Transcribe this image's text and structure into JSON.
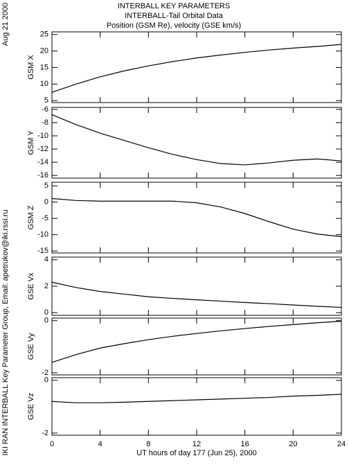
{
  "header": {
    "date": "Aug 21 2000",
    "credit": "IKI RAN INTERBALL Key Parameter Group, Email: apetrukov@iki.rssi.ru",
    "title": "INTERBALL KEY PARAMETERS",
    "subtitle": "INTERBALL-Tail Orbital Data",
    "subtitle2": "Position (GSM Re), velocity (GSE km/s)"
  },
  "chart_data": [
    {
      "type": "line",
      "ylabel": "GSM X",
      "x": [
        0,
        2,
        4,
        6,
        8,
        10,
        12,
        14,
        16,
        18,
        20,
        22,
        24
      ],
      "values": [
        7.5,
        10,
        12.2,
        14,
        15.5,
        16.8,
        17.9,
        18.8,
        19.6,
        20.3,
        20.9,
        21.4,
        22
      ],
      "xlim": [
        0,
        24
      ],
      "xticks": [
        0,
        4,
        8,
        12,
        16,
        20,
        24
      ],
      "show_xtick_labels": false,
      "ylim": [
        4.4,
        25.8
      ],
      "yticks": [
        5,
        10,
        15,
        20,
        25
      ],
      "color": "#000000"
    },
    {
      "type": "line",
      "ylabel": "GSM Y",
      "x": [
        0,
        2,
        4,
        6,
        8,
        10,
        12,
        14,
        16,
        18,
        20,
        22,
        24
      ],
      "values": [
        -6.8,
        -8.3,
        -9.6,
        -10.7,
        -11.8,
        -12.8,
        -13.6,
        -14.2,
        -14.4,
        -14.1,
        -13.7,
        -13.5,
        -13.8
      ],
      "xlim": [
        0,
        24
      ],
      "xticks": [
        0,
        4,
        8,
        12,
        16,
        20,
        24
      ],
      "show_xtick_labels": false,
      "ylim": [
        -16.4,
        -5.7
      ],
      "yticks": [
        -6,
        -8,
        -10,
        -12,
        -14,
        -16
      ],
      "color": "#000000"
    },
    {
      "type": "line",
      "ylabel": "GSM Z",
      "x": [
        0,
        2,
        4,
        6,
        8,
        10,
        12,
        14,
        16,
        18,
        20,
        22,
        24
      ],
      "values": [
        1.1,
        0.5,
        0.3,
        0.3,
        0.3,
        0.3,
        -0.2,
        -1.5,
        -3.5,
        -6.0,
        -8.3,
        -9.8,
        -10.6
      ],
      "xlim": [
        0,
        24
      ],
      "xticks": [
        0,
        4,
        8,
        12,
        16,
        20,
        24
      ],
      "show_xtick_labels": false,
      "ylim": [
        -15.6,
        6.1
      ],
      "yticks": [
        5,
        0,
        -5,
        -10,
        -15
      ],
      "color": "#000000"
    },
    {
      "type": "line",
      "ylabel": "GSE Vx",
      "x": [
        0,
        2,
        4,
        6,
        8,
        10,
        12,
        14,
        16,
        18,
        20,
        22,
        24
      ],
      "values": [
        2.3,
        1.9,
        1.6,
        1.4,
        1.2,
        1.08,
        0.97,
        0.87,
        0.77,
        0.68,
        0.58,
        0.48,
        0.4
      ],
      "xlim": [
        0,
        24
      ],
      "xticks": [
        0,
        4,
        8,
        12,
        16,
        20,
        24
      ],
      "show_xtick_labels": false,
      "ylim": [
        -0.2,
        4.2
      ],
      "yticks": [
        0,
        2,
        4
      ],
      "color": "#000000"
    },
    {
      "type": "line",
      "ylabel": "GSE Vy",
      "x": [
        0,
        2,
        4,
        6,
        8,
        10,
        12,
        14,
        16,
        18,
        20,
        22,
        24
      ],
      "values": [
        -1.6,
        -1.3,
        -1.05,
        -0.88,
        -0.73,
        -0.6,
        -0.49,
        -0.39,
        -0.3,
        -0.22,
        -0.15,
        -0.08,
        -0.02
      ],
      "xlim": [
        0,
        24
      ],
      "xticks": [
        0,
        4,
        8,
        12,
        16,
        20,
        24
      ],
      "show_xtick_labels": false,
      "ylim": [
        -2.08,
        0.1
      ],
      "yticks": [
        0,
        -2
      ],
      "color": "#000000"
    },
    {
      "type": "line",
      "ylabel": "GSE Vz",
      "xlabel": "UT hours of day 177 (Jun 25), 2000",
      "x": [
        0,
        2,
        4,
        6,
        8,
        10,
        12,
        14,
        16,
        18,
        20,
        22,
        24
      ],
      "values": [
        -0.8,
        -0.85,
        -0.85,
        -0.83,
        -0.8,
        -0.77,
        -0.74,
        -0.71,
        -0.68,
        -0.65,
        -0.6,
        -0.57,
        -0.53
      ],
      "xlim": [
        0,
        24
      ],
      "xticks": [
        0,
        4,
        8,
        12,
        16,
        20,
        24
      ],
      "show_xtick_labels": true,
      "ylim": [
        -2.08,
        0.1
      ],
      "yticks": [
        0,
        -2
      ],
      "color": "#000000"
    }
  ]
}
